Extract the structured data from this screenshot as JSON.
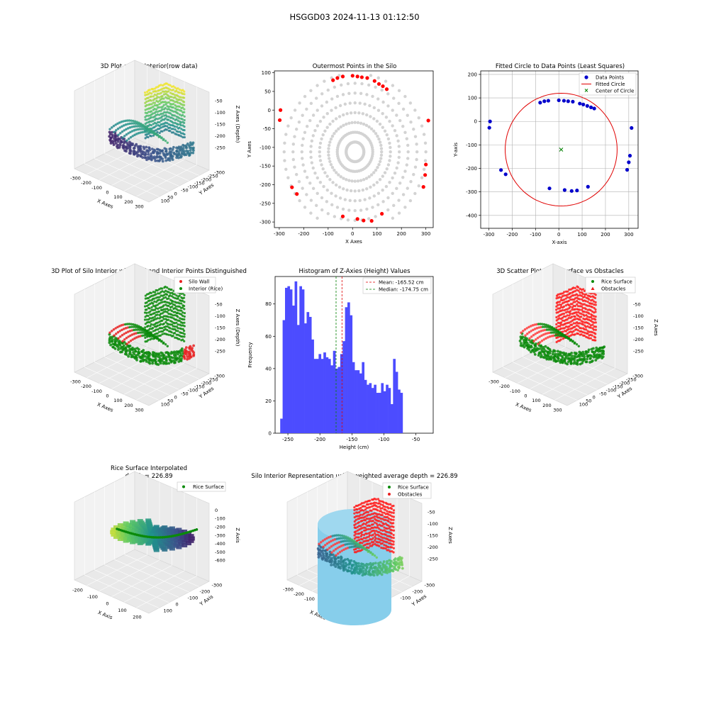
{
  "figure": {
    "suptitle": "HSGGD03 2024-11-13 01:12:50"
  },
  "chart_data": [
    {
      "id": "p1",
      "type": "scatter3d",
      "title": "3D Plot of Silo Interior(row data)",
      "xlabel": "X Axes",
      "ylabel": "Y Axes",
      "zlabel": "Z Axes (Depth)",
      "xticks": [
        "-300",
        "-200",
        "-100",
        "0",
        "100",
        "200",
        "300"
      ],
      "yticks": [
        "100",
        "50",
        "0",
        "-50",
        "-100",
        "-150",
        "-200",
        "-250",
        "-300"
      ],
      "zticks": [
        "-50",
        "-100",
        "-150",
        "-200",
        "-250"
      ],
      "colormap": "viridis"
    },
    {
      "id": "p2",
      "type": "scatter",
      "title": "Outermost Points in the Silo",
      "xlabel": "X Axes",
      "ylabel": "Y Axes",
      "xlim": [
        -320,
        330
      ],
      "ylim": [
        -315,
        105
      ],
      "xticks": [
        -300,
        -200,
        -100,
        0,
        100,
        200,
        300
      ],
      "yticks": [
        100,
        50,
        0,
        -50,
        -100,
        -150,
        -200,
        -250,
        -300
      ],
      "background_color": "#d3d3d3",
      "outer_color": "#ff0000",
      "outer_points": [
        [
          -295,
          0
        ],
        [
          -298,
          -27
        ],
        [
          -248,
          -207
        ],
        [
          -228,
          -225
        ],
        [
          -40,
          -285
        ],
        [
          20,
          -292
        ],
        [
          45,
          -296
        ],
        [
          78,
          -297
        ],
        [
          120,
          -278
        ],
        [
          290,
          -206
        ],
        [
          297,
          -174
        ],
        [
          300,
          -146
        ],
        [
          310,
          -28
        ],
        [
          -80,
          80
        ],
        [
          -62,
          86
        ],
        [
          -40,
          90
        ],
        [
          0,
          92
        ],
        [
          20,
          90
        ],
        [
          38,
          88
        ],
        [
          60,
          86
        ],
        [
          90,
          78
        ],
        [
          108,
          70
        ],
        [
          124,
          64
        ],
        [
          140,
          56
        ]
      ]
    },
    {
      "id": "p3",
      "type": "scatter",
      "title": "Fitted Circle to Data Points (Least Squares)",
      "xlabel": "X-axis",
      "ylabel": "Y-axis",
      "xlim": [
        -335,
        340
      ],
      "ylim": [
        -455,
        215
      ],
      "xticks": [
        -300,
        -200,
        -100,
        0,
        100,
        200,
        300
      ],
      "yticks": [
        200,
        100,
        0,
        -100,
        -200,
        -300,
        -400
      ],
      "grid": true,
      "legend": [
        "Data Points",
        "Fitted Circle",
        "Center of Circle"
      ],
      "legend_position": "top-right",
      "center": [
        10,
        -120
      ],
      "radius": 240,
      "points": [
        [
          -295,
          0
        ],
        [
          -298,
          -27
        ],
        [
          -248,
          -207
        ],
        [
          -228,
          -225
        ],
        [
          -40,
          -285
        ],
        [
          25,
          -292
        ],
        [
          55,
          -296
        ],
        [
          78,
          -294
        ],
        [
          125,
          -278
        ],
        [
          293,
          -206
        ],
        [
          300,
          -174
        ],
        [
          305,
          -146
        ],
        [
          312,
          -28
        ],
        [
          -80,
          80
        ],
        [
          -62,
          86
        ],
        [
          -45,
          88
        ],
        [
          0,
          90
        ],
        [
          22,
          88
        ],
        [
          40,
          86
        ],
        [
          60,
          84
        ],
        [
          90,
          76
        ],
        [
          105,
          72
        ],
        [
          122,
          66
        ],
        [
          138,
          60
        ],
        [
          152,
          55
        ]
      ]
    },
    {
      "id": "p4",
      "type": "scatter3d",
      "title": "3D Plot of Silo Interior with Wall and Interior Points Distinguished",
      "xlabel": "X Axes",
      "ylabel": "Y Axes",
      "zlabel": "Z Axes (Depth)",
      "legend": [
        "Silo Wall",
        "Interior (Rice)"
      ],
      "xticks": [
        "-300",
        "-200",
        "-100",
        "0",
        "100",
        "200",
        "300"
      ],
      "yticks": [
        "100",
        "50",
        "0",
        "-50",
        "-100",
        "-150",
        "-200",
        "-250",
        "-300"
      ],
      "zticks": [
        "-50",
        "-100",
        "-150",
        "-200",
        "-250"
      ]
    },
    {
      "id": "p5",
      "type": "histogram",
      "title": "Histogram of Z-Axies (Height) Values",
      "xlabel": "Height (cm)",
      "ylabel": "Frequency",
      "xlim": [
        -270,
        -23
      ],
      "ylim": [
        0,
        97
      ],
      "xticks": [
        -250,
        -200,
        -150,
        -100,
        -50
      ],
      "yticks": [
        0,
        20,
        40,
        60,
        80
      ],
      "bin_start": -262,
      "bin_width": 3.75,
      "values": [
        9,
        70,
        90,
        91,
        89,
        79,
        94,
        67,
        91,
        89,
        68,
        75,
        72,
        58,
        46,
        46,
        49,
        46,
        50,
        47,
        46,
        42,
        51,
        40,
        41,
        49,
        57,
        78,
        81,
        73,
        44,
        39,
        39,
        37,
        44,
        33,
        30,
        31,
        28,
        30,
        25,
        25,
        31,
        26,
        30,
        28,
        18,
        46,
        38,
        27,
        25
      ],
      "bar_color": "#4c4cff",
      "mean": -165.52,
      "median": -174.75,
      "legend": [
        "Mean: -165.52 cm",
        "Median: -174.75 cm"
      ]
    },
    {
      "id": "p6",
      "type": "scatter3d",
      "title": "3D Scatter Plot: Rice Surface vs Obstacles",
      "xlabel": "X Axes",
      "ylabel": "Y Axes",
      "zlabel": "Z Axes",
      "legend": [
        "Rice Surface",
        "Obstacles"
      ],
      "xticks": [
        "-300",
        "-200",
        "-100",
        "0",
        "100",
        "200",
        "300"
      ],
      "yticks": [
        "100",
        "50",
        "0",
        "-50",
        "-100",
        "-150",
        "-200",
        "-250",
        "-300"
      ],
      "zticks": [
        "-50",
        "-100",
        "-150",
        "-200",
        "-250"
      ]
    },
    {
      "id": "p7",
      "type": "surface3d",
      "title": "Rice Surface Interpolated",
      "subtitle": "depth = 226.89",
      "xlabel": "X Axis",
      "ylabel": "Y Axis",
      "zlabel": "Z Axis",
      "legend": [
        "Rice Surface"
      ],
      "xticks": [
        "-200",
        "-100",
        "0",
        "100",
        "200"
      ],
      "yticks": [
        "100",
        "0",
        "-100",
        "-200",
        "-300"
      ],
      "zticks": [
        "0",
        "-100",
        "-200",
        "-300",
        "-400",
        "-500",
        "-600"
      ]
    },
    {
      "id": "p8",
      "type": "surface3d",
      "title": "Silo Interior Representation using weighted average depth = 226.89",
      "xlabel": "X Axes",
      "ylabel": "Y Axes",
      "zlabel": "Z Axes",
      "legend": [
        "Rice Surface",
        "Obstacles"
      ],
      "xticks": [
        "-300",
        "-200",
        "-100",
        "0",
        "100",
        "200",
        "300"
      ],
      "yticks": [
        "100",
        "0",
        "-100",
        "-200",
        "-300"
      ],
      "zticks": [
        "-50",
        "-100",
        "-150",
        "-200",
        "-250"
      ]
    }
  ]
}
